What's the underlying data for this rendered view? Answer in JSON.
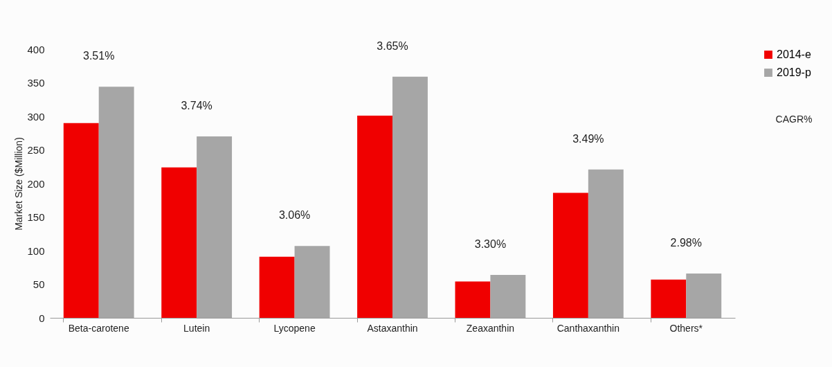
{
  "chart_data": {
    "type": "bar",
    "ylabel": "Market Size ($Million)",
    "categories": [
      "Beta-carotene",
      "Lutein",
      "Lycopene",
      "Astaxanthin",
      "Zeaxanthin",
      "Canthaxanthin",
      "Others*"
    ],
    "series": [
      {
        "name": "2014-e",
        "color": "#f00000",
        "values": [
          290,
          224,
          91,
          301,
          54,
          186,
          57
        ]
      },
      {
        "name": "2019-p",
        "color": "#a6a6a6",
        "values": [
          344,
          270,
          107,
          359,
          64,
          221,
          66
        ]
      }
    ],
    "ylim": [
      0,
      400
    ],
    "yticks": [
      0,
      50,
      100,
      150,
      200,
      250,
      300,
      350,
      400
    ],
    "grid": false,
    "legend": "right",
    "annotations": [
      {
        "text": "3.51%",
        "x": "Beta-carotene",
        "y": 344
      },
      {
        "text": "3.74%",
        "x": "Lutein",
        "y": 270
      },
      {
        "text": "3.06%",
        "x": "Lycopene",
        "y": 107
      },
      {
        "text": "3.65%",
        "x": "Astaxanthin",
        "y": 359
      },
      {
        "text": "3.30%",
        "x": "Zeaxanthin",
        "y": 64
      },
      {
        "text": "3.49%",
        "x": "Canthaxanthin",
        "y": 221
      },
      {
        "text": "2.98%",
        "x": "Others*",
        "y": 66
      },
      "CAGR%"
    ]
  }
}
